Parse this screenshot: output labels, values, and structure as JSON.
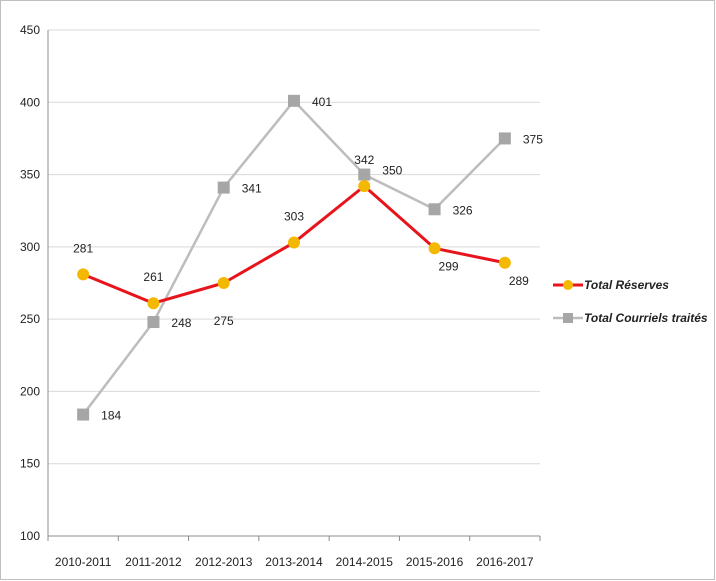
{
  "chart_data": {
    "type": "line",
    "title": "",
    "xlabel": "",
    "ylabel": "",
    "categories": [
      "2010-2011",
      "2011-2012",
      "2012-2013",
      "2013-2014",
      "2014-2015",
      "2015-2016",
      "2016-2017"
    ],
    "ylim": [
      100,
      450
    ],
    "yticks": [
      100,
      150,
      200,
      250,
      300,
      350,
      400,
      450
    ],
    "ytick_labels": [
      "100",
      "150",
      "200",
      "250",
      "300",
      "350",
      "400",
      "450"
    ],
    "grid": true,
    "legend_position": "right",
    "series": [
      {
        "name": "Total Réserves",
        "values": [
          281,
          261,
          275,
          303,
          342,
          299,
          289
        ],
        "labels": [
          "281",
          "261",
          "275",
          "303",
          "342",
          "299",
          "289"
        ],
        "line_color": "#e8141c",
        "marker_color": "#f5b800",
        "marker": "circle"
      },
      {
        "name": "Total Courriels traités",
        "values": [
          184,
          248,
          341,
          401,
          350,
          326,
          375
        ],
        "labels": [
          "184",
          "248",
          "341",
          "401",
          "350",
          "326",
          "375"
        ],
        "line_color": "#bdbdbd",
        "marker_color": "#a6a6a6",
        "marker": "square"
      }
    ]
  }
}
